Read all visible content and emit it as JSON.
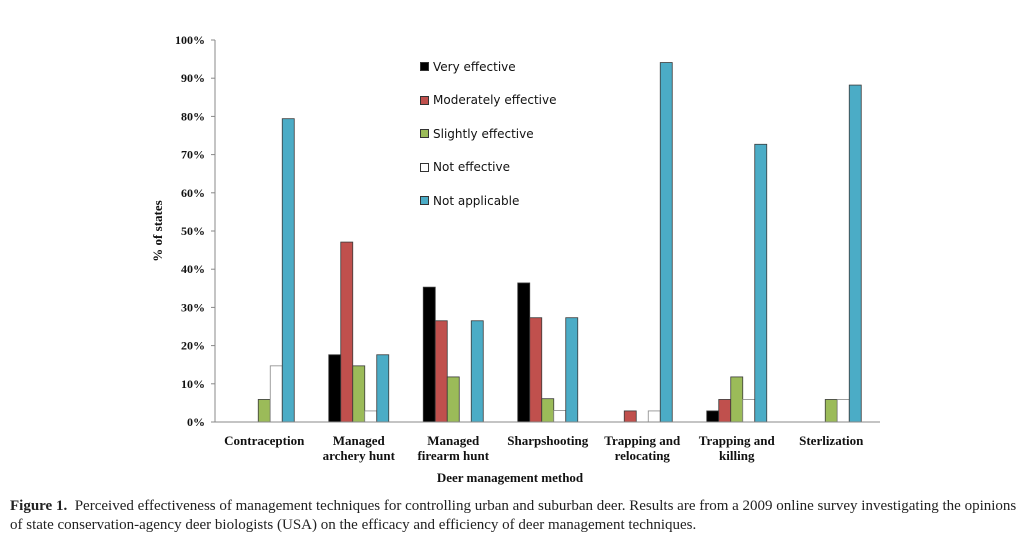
{
  "chart_data": {
    "type": "bar",
    "title": "",
    "xlabel": "Deer management method",
    "ylabel": "% of states",
    "ylim": [
      0,
      100
    ],
    "yticks": [
      "0%",
      "10%",
      "20%",
      "30%",
      "40%",
      "50%",
      "60%",
      "70%",
      "80%",
      "90%",
      "100%"
    ],
    "categories": [
      [
        "Contraception"
      ],
      [
        "Managed",
        "archery hunt"
      ],
      [
        "Managed",
        "firearm hunt"
      ],
      [
        "Sharpshooting"
      ],
      [
        "Trapping and",
        "relocating"
      ],
      [
        "Trapping and",
        "killing"
      ],
      [
        "Sterlization"
      ]
    ],
    "legend_position": "top-center",
    "series": [
      {
        "name": "Very effective",
        "color": "#000000",
        "values": [
          0,
          17.6,
          35.3,
          36.4,
          0,
          2.9,
          0
        ]
      },
      {
        "name": "Moderately effective",
        "color": "#c0504d",
        "values": [
          0,
          47.1,
          26.5,
          27.3,
          2.9,
          5.9,
          0
        ]
      },
      {
        "name": "Slightly effective",
        "color": "#9bbb59",
        "values": [
          5.9,
          14.7,
          11.8,
          6.1,
          0,
          11.8,
          5.9
        ]
      },
      {
        "name": "Not effective",
        "color": "#ffffff",
        "values": [
          14.7,
          2.9,
          0,
          3.0,
          2.9,
          5.9,
          5.9
        ]
      },
      {
        "name": "Not applicable",
        "color": "#4bacc6",
        "values": [
          79.4,
          17.6,
          26.5,
          27.3,
          94.1,
          72.7,
          88.2
        ]
      }
    ]
  },
  "caption": {
    "label": "Figure 1.",
    "text": "Perceived effectiveness of management techniques for controlling urban and suburban deer. Results are from a 2009 online survey investigating the opinions of state conservation-agency deer biologists (USA) on the efficacy and efficiency of deer management techniques."
  }
}
